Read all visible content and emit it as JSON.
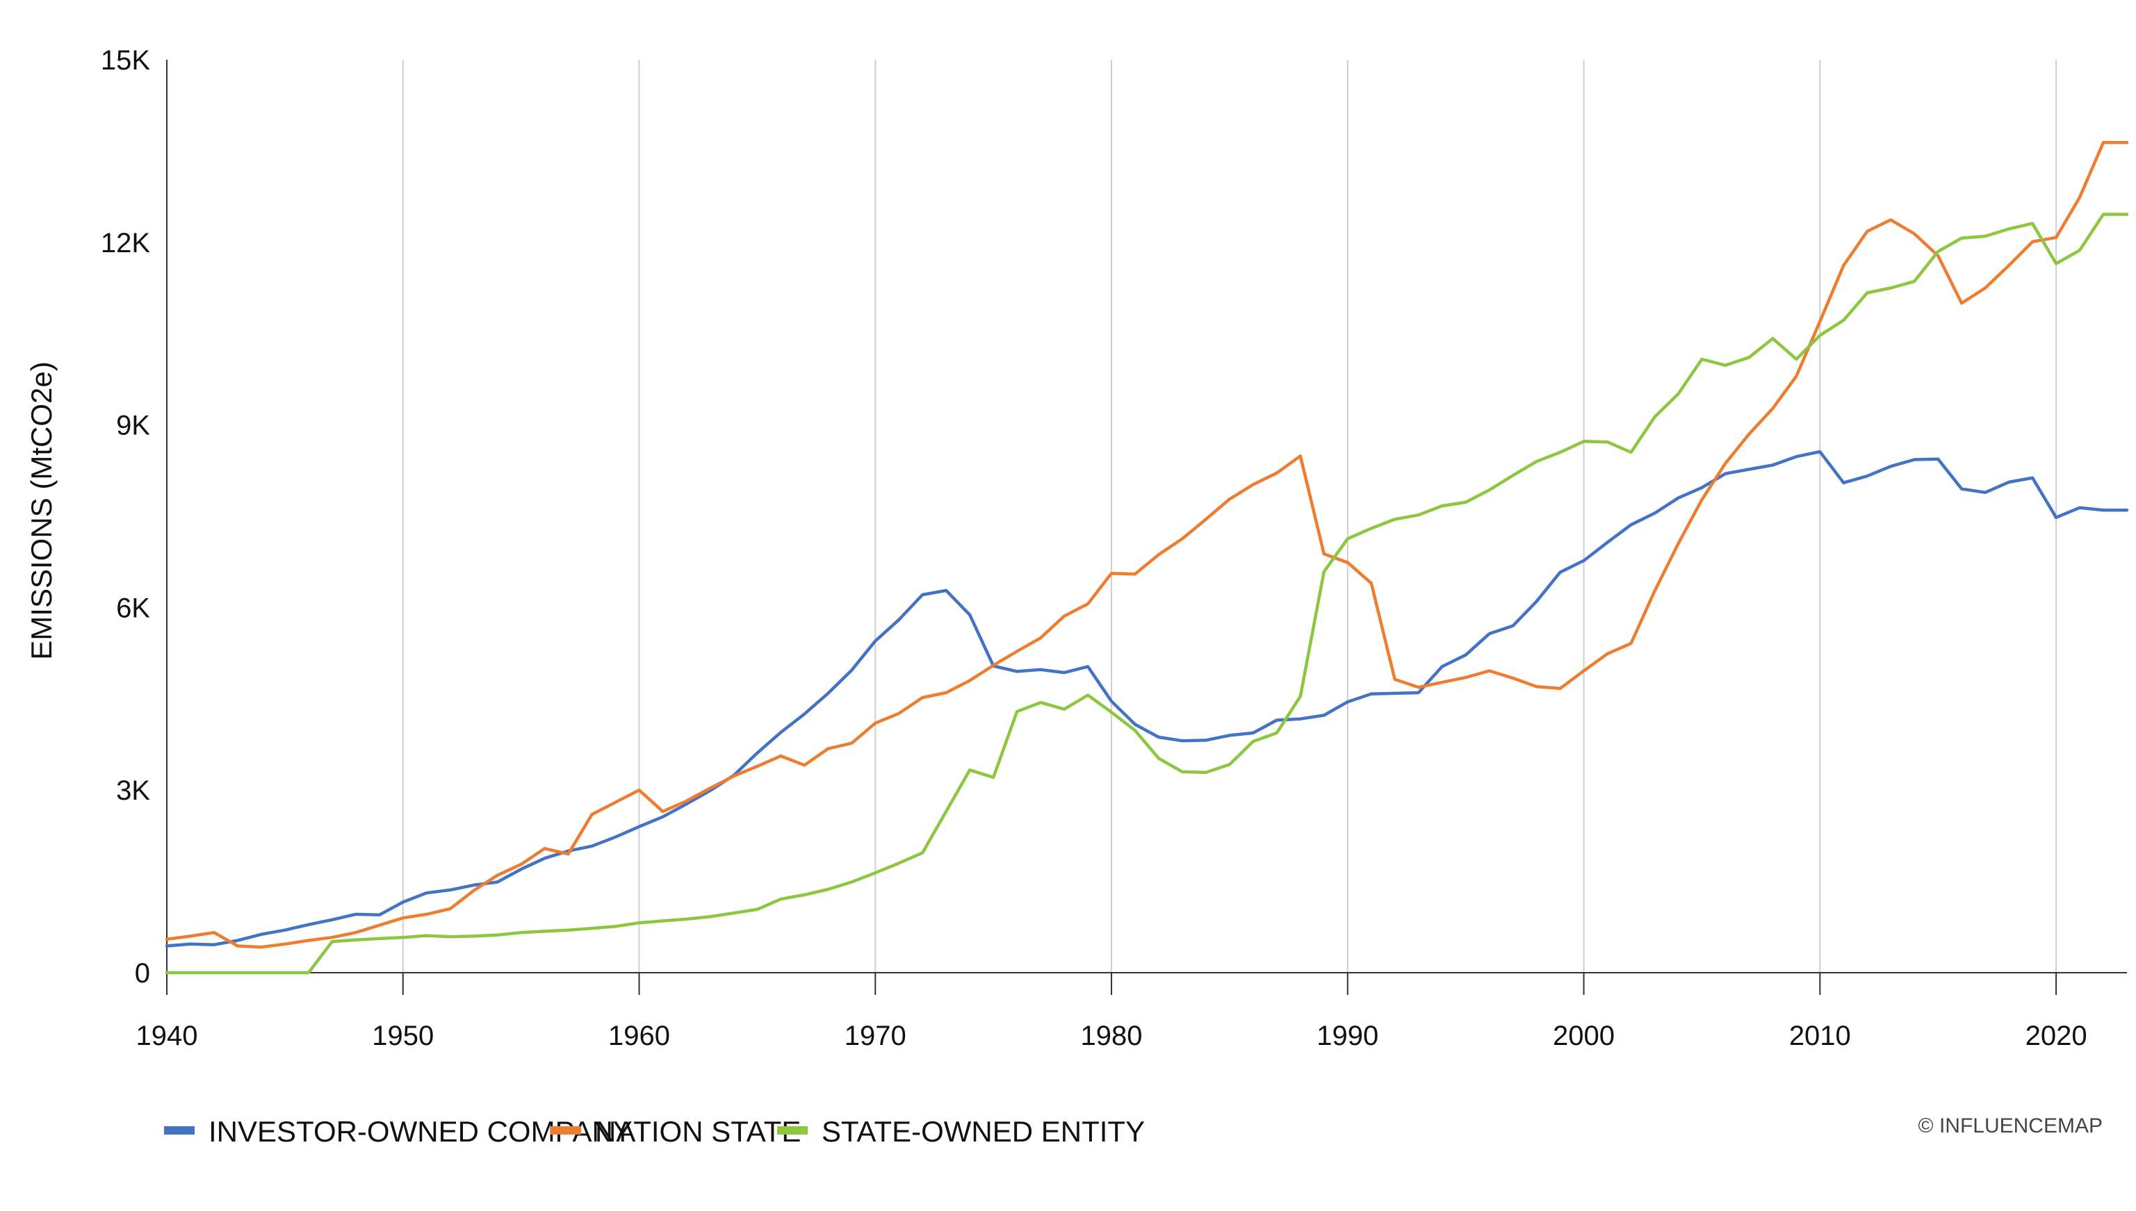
{
  "chart_data": {
    "type": "line",
    "title": "",
    "xlabel": "",
    "ylabel": "EMISSIONS (MtCO2e)",
    "xlim": [
      1940,
      2023
    ],
    "ylim": [
      0,
      15000
    ],
    "x_ticks": [
      1940,
      1950,
      1960,
      1970,
      1980,
      1990,
      2000,
      2010,
      2020
    ],
    "y_ticks": [
      0,
      3000,
      6000,
      9000,
      12000,
      15000
    ],
    "y_tick_labels": [
      "0",
      "3K",
      "6K",
      "9K",
      "12K",
      "15K"
    ],
    "grid": "vertical",
    "legend_position": "bottom-left",
    "credit": "© INFLUENCEMAP",
    "x": [
      1940,
      1941,
      1942,
      1943,
      1944,
      1945,
      1946,
      1947,
      1948,
      1949,
      1950,
      1951,
      1952,
      1953,
      1954,
      1955,
      1956,
      1957,
      1958,
      1959,
      1960,
      1961,
      1962,
      1963,
      1964,
      1965,
      1966,
      1967,
      1968,
      1969,
      1970,
      1971,
      1972,
      1973,
      1974,
      1975,
      1976,
      1977,
      1978,
      1979,
      1980,
      1981,
      1982,
      1983,
      1984,
      1985,
      1986,
      1987,
      1988,
      1989,
      1990,
      1991,
      1992,
      1993,
      1994,
      1995,
      1996,
      1997,
      1998,
      1999,
      2000,
      2001,
      2002,
      2003,
      2004,
      2005,
      2006,
      2007,
      2008,
      2009,
      2010,
      2011,
      2012,
      2013,
      2014,
      2015,
      2016,
      2017,
      2018,
      2019,
      2020,
      2021,
      2022,
      2023
    ],
    "series": [
      {
        "name": "INVESTOR-OWNED COMPANY",
        "color": "#4472c4",
        "values": [
          440,
          470,
          460,
          530,
          630,
          700,
          790,
          870,
          960,
          950,
          1160,
          1310,
          1360,
          1440,
          1490,
          1700,
          1880,
          2000,
          2080,
          2230,
          2400,
          2560,
          2770,
          2990,
          3240,
          3610,
          3950,
          4250,
          4590,
          4970,
          5450,
          5800,
          6210,
          6280,
          5880,
          5040,
          4950,
          4980,
          4930,
          5030,
          4460,
          4080,
          3870,
          3810,
          3820,
          3900,
          3940,
          4150,
          4170,
          4230,
          4450,
          4580,
          4590,
          4600,
          5030,
          5220,
          5570,
          5700,
          6100,
          6580,
          6770,
          7070,
          7360,
          7550,
          7800,
          7970,
          8200,
          8270,
          8340,
          8480,
          8560,
          8050,
          8160,
          8320,
          8430,
          8440,
          7950,
          7890,
          8060,
          8130,
          7480,
          7640,
          7600,
          7600
        ]
      },
      {
        "name": "NATION STATE",
        "color": "#ed7d31",
        "values": [
          550,
          600,
          660,
          440,
          420,
          470,
          530,
          580,
          660,
          780,
          900,
          960,
          1050,
          1350,
          1600,
          1780,
          2040,
          1950,
          2600,
          2800,
          3000,
          2650,
          2820,
          3030,
          3230,
          3390,
          3560,
          3410,
          3680,
          3770,
          4100,
          4260,
          4520,
          4600,
          4800,
          5050,
          5280,
          5500,
          5860,
          6060,
          6560,
          6550,
          6870,
          7130,
          7450,
          7780,
          8020,
          8210,
          8490,
          6880,
          6740,
          6400,
          4820,
          4690,
          4770,
          4850,
          4960,
          4840,
          4700,
          4670,
          4960,
          5240,
          5410,
          6270,
          7050,
          7770,
          8370,
          8850,
          9270,
          9800,
          10700,
          11620,
          12180,
          12370,
          12140,
          11780,
          11000,
          11250,
          11620,
          12010,
          12080,
          12740,
          13640,
          13640
        ]
      },
      {
        "name": "STATE-OWNED ENTITY",
        "color": "#8dc63f",
        "values": [
          0,
          0,
          0,
          0,
          0,
          0,
          0,
          510,
          540,
          560,
          580,
          610,
          590,
          600,
          620,
          660,
          680,
          700,
          730,
          760,
          820,
          850,
          880,
          920,
          980,
          1040,
          1210,
          1280,
          1370,
          1490,
          1640,
          1800,
          1970,
          2650,
          3330,
          3210,
          4290,
          4440,
          4330,
          4560,
          4280,
          3980,
          3520,
          3300,
          3290,
          3420,
          3800,
          3940,
          4540,
          6590,
          7130,
          7300,
          7450,
          7520,
          7670,
          7730,
          7930,
          8170,
          8400,
          8550,
          8730,
          8720,
          8550,
          9130,
          9510,
          10080,
          9980,
          10110,
          10420,
          10080,
          10470,
          10720,
          11170,
          11250,
          11360,
          11850,
          12070,
          12100,
          12220,
          12310,
          11650,
          11870,
          12460,
          12460
        ]
      }
    ]
  }
}
